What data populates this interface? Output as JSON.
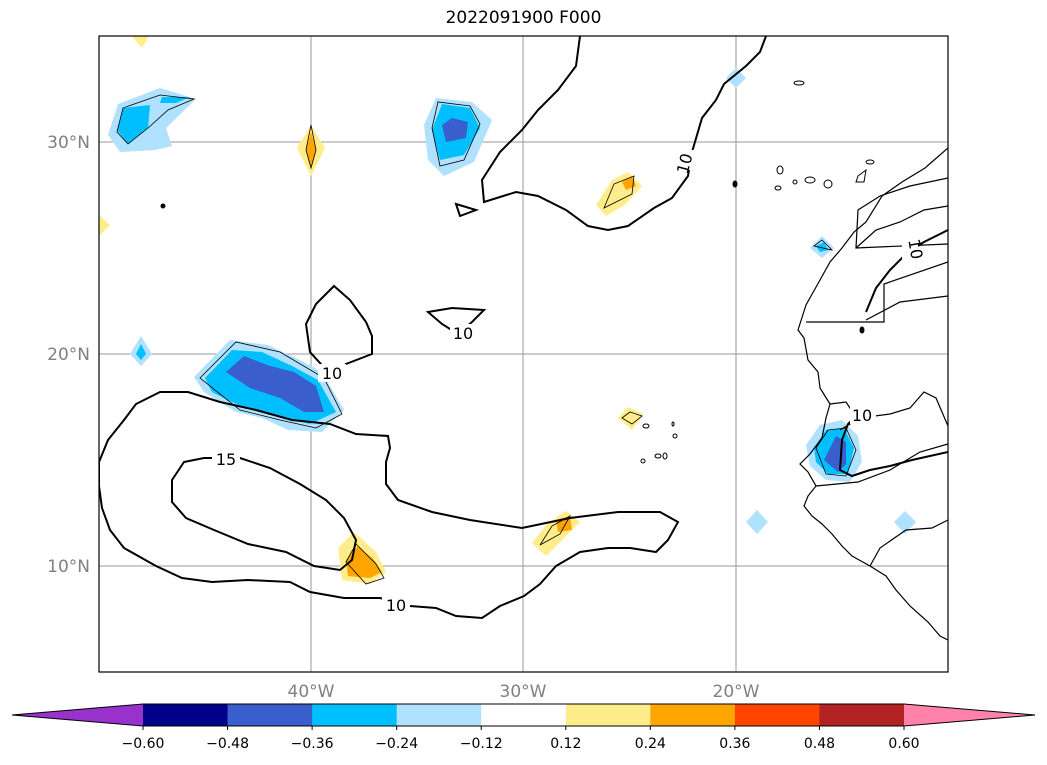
{
  "title": "2022091900 F000",
  "map": {
    "lat_labels": [
      "30°N",
      "20°N",
      "10°N"
    ],
    "lon_labels": [
      "40°W",
      "30°W",
      "20°W"
    ],
    "contour_labels": [
      "10",
      "10",
      "10",
      "10",
      "15",
      "10"
    ]
  },
  "colorbar": {
    "colors": [
      "#9932cc",
      "#00008b",
      "#3a5fcd",
      "#00bfff",
      "#b0e2ff",
      "#ffffff",
      "#ffec8b",
      "#ffa500",
      "#ff4500",
      "#b22222",
      "#ff82ab"
    ],
    "tick_labels": [
      "−0.60",
      "−0.48",
      "−0.36",
      "−0.24",
      "−0.12",
      "0.12",
      "0.24",
      "0.36",
      "0.48",
      "0.60"
    ]
  }
}
